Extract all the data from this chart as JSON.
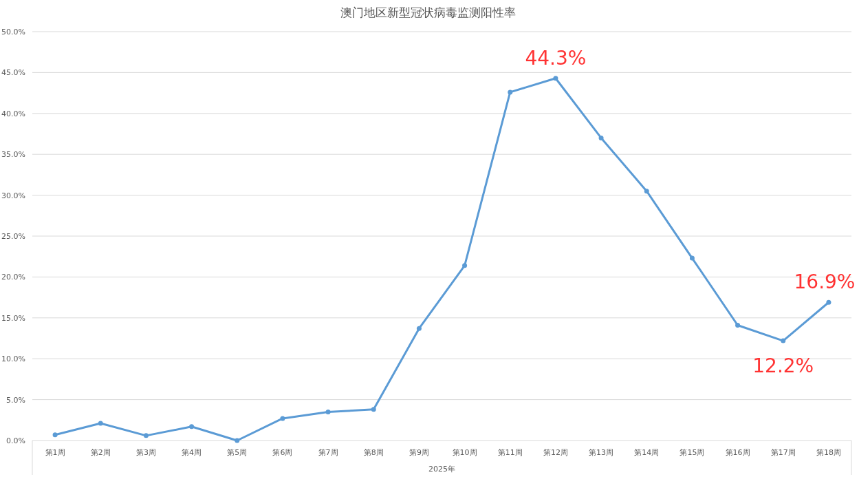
{
  "chart_data": {
    "type": "line",
    "title": "澳门地区新型冠状病毒监测阳性率",
    "xlabel": "2025年",
    "categories": [
      "第1周",
      "第2周",
      "第3周",
      "第4周",
      "第5周",
      "第6周",
      "第7周",
      "第8周",
      "第9周",
      "第10周",
      "第11周",
      "第12周",
      "第13周",
      "第14周",
      "第15周",
      "第16周",
      "第17周",
      "第18周"
    ],
    "series": [
      {
        "color": "#5b9bd5",
        "values": [
          0.7,
          2.1,
          0.6,
          1.7,
          0.0,
          2.7,
          3.5,
          3.8,
          13.7,
          21.4,
          42.6,
          44.3,
          37.0,
          30.5,
          22.3,
          14.1,
          12.2,
          16.9
        ],
        "value_labels": [
          null,
          null,
          null,
          null,
          null,
          null,
          null,
          null,
          null,
          null,
          null,
          "44.3%",
          null,
          null,
          null,
          null,
          "12.2%",
          "16.9%"
        ]
      }
    ],
    "ylim": [
      0,
      50
    ],
    "yticks": [
      {
        "value": 0,
        "label": "0.0%"
      },
      {
        "value": 5,
        "label": "5.0%"
      },
      {
        "value": 10,
        "label": "10.0%"
      },
      {
        "value": 15,
        "label": "15.0%"
      },
      {
        "value": 20,
        "label": "20.0%"
      },
      {
        "value": 25,
        "label": "25.0%"
      },
      {
        "value": 30,
        "label": "30.0%"
      },
      {
        "value": 35,
        "label": "35.0%"
      },
      {
        "value": 40,
        "label": "40.0%"
      },
      {
        "value": 45,
        "label": "45.0%"
      },
      {
        "value": 50,
        "label": "50.0%"
      }
    ],
    "grid": "y",
    "marker": "circle"
  }
}
